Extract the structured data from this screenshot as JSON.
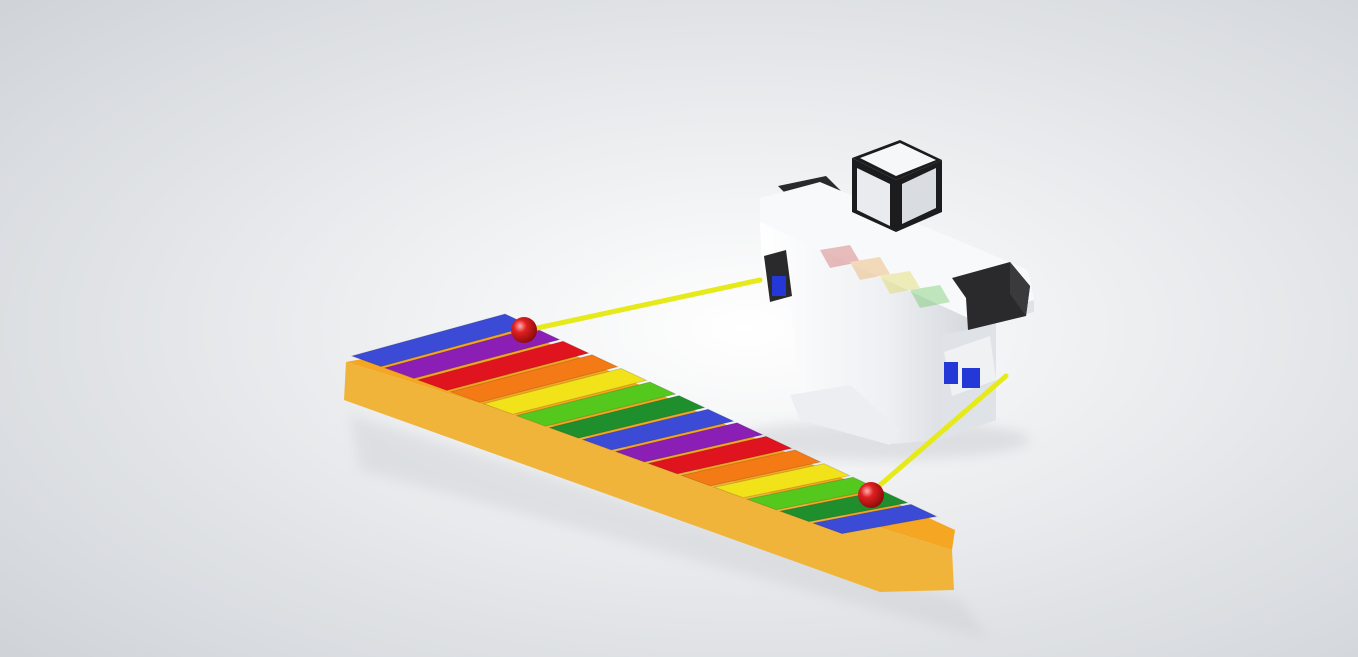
{
  "scene": {
    "background": {
      "center": "#ffffff",
      "edge": "#cfd3d8"
    },
    "xylophone": {
      "base_color": "#f5a623",
      "base_side_color": "#f0b43a",
      "bar_colors": [
        "#3c4bd6",
        "#8b1fb5",
        "#e0141e",
        "#f47a16",
        "#f2e21a",
        "#55c81e",
        "#1f8f2e",
        "#3c4bd6",
        "#8b1fb5",
        "#e0141e",
        "#f47a16",
        "#f2e21a",
        "#55c81e",
        "#1f8f2e",
        "#3c4bd6"
      ]
    },
    "robot": {
      "body_color": "#f4f5f7",
      "head_color": "#1c1c1e",
      "servo_color": "#2a2a2c",
      "servo_accent_color": "#2438d8"
    },
    "mallets": {
      "stick_color": "#e6ea1a",
      "head_color": "#d41616"
    }
  }
}
